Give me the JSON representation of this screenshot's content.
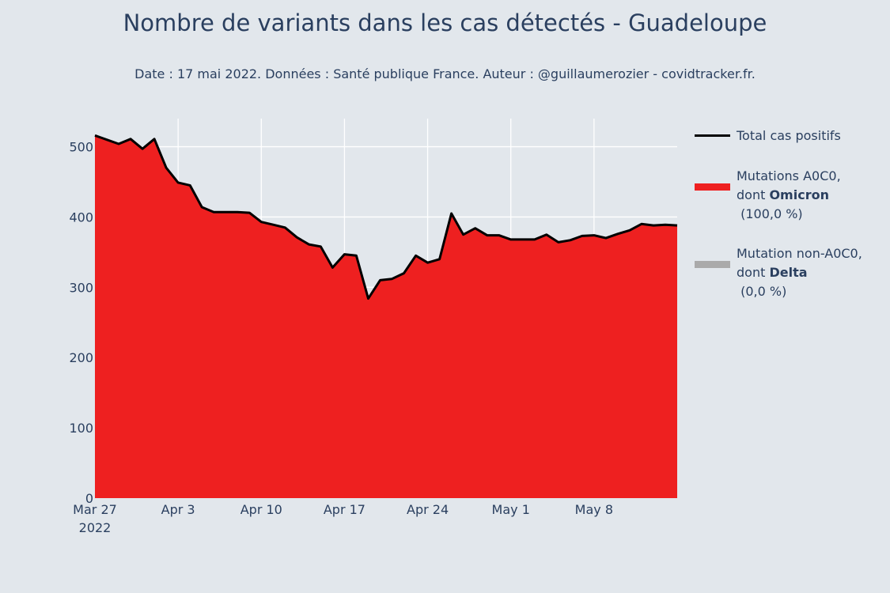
{
  "chart_data": {
    "type": "area",
    "title": "Nombre de variants dans les cas détectés - Guadeloupe",
    "subtitle": "Date : 17 mai 2022. Données : Santé publique France. Auteur : @guillaumerozier - covidtracker.fr.",
    "x_ticks": [
      "Mar 27",
      "Apr 3",
      "Apr 10",
      "Apr 17",
      "Apr 24",
      "May 1",
      "May 8"
    ],
    "x_tick_year": "2022",
    "y_ticks": [
      "0",
      "100",
      "200",
      "300",
      "400",
      "500"
    ],
    "ylim": [
      0,
      540
    ],
    "start_date": "2022-03-27",
    "grid": true,
    "legend_position": "right",
    "series": [
      {
        "name": "Total cas positifs",
        "color": "#000000",
        "kind": "line"
      },
      {
        "name": "Mutations A0C0, dont Omicron (100,0 %)",
        "color": "#ee2020",
        "kind": "area"
      },
      {
        "name": "Mutation non-A0C0, dont Delta (0,0 %)",
        "color": "#aaaaaa",
        "kind": "area"
      }
    ],
    "values": [
      516,
      510,
      504,
      511,
      497,
      511,
      470,
      449,
      445,
      414,
      407,
      407,
      407,
      406,
      393,
      389,
      385,
      371,
      361,
      358,
      328,
      347,
      345,
      284,
      310,
      312,
      320,
      345,
      335,
      340,
      405,
      375,
      384,
      374,
      374,
      368,
      368,
      368,
      375,
      364,
      367,
      373,
      374,
      370,
      376,
      381,
      390,
      388,
      389,
      388
    ]
  },
  "legend": {
    "total": {
      "label": "Total cas positifs"
    },
    "omicron": {
      "line1": "Mutations A0C0,",
      "prefix": "dont ",
      "bold": "Omicron",
      "pct": " (100,0 %)"
    },
    "delta": {
      "line1": "Mutation non-A0C0,",
      "prefix": "dont ",
      "bold": "Delta",
      "pct": " (0,0 %)"
    }
  }
}
